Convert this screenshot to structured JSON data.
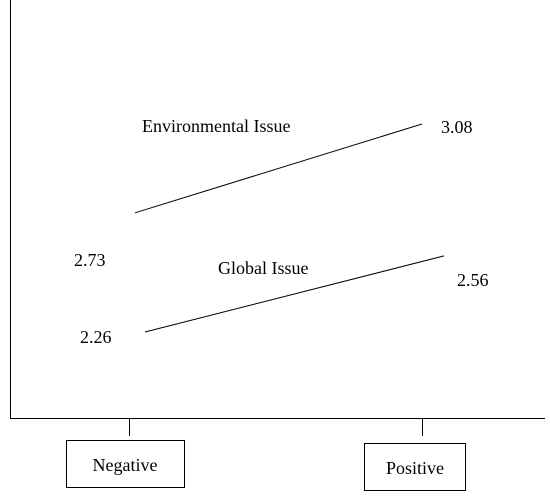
{
  "chart_data": {
    "type": "line",
    "categories": [
      "Negative",
      "Positive"
    ],
    "series": [
      {
        "name": "Environmental Issue",
        "values": [
          2.73,
          3.08
        ]
      },
      {
        "name": "Global Issue",
        "values": [
          2.26,
          2.56
        ]
      }
    ],
    "title": "",
    "xlabel": "",
    "ylabel": "",
    "grid": false,
    "legend": "inline labels",
    "line_color": "#000000"
  }
}
